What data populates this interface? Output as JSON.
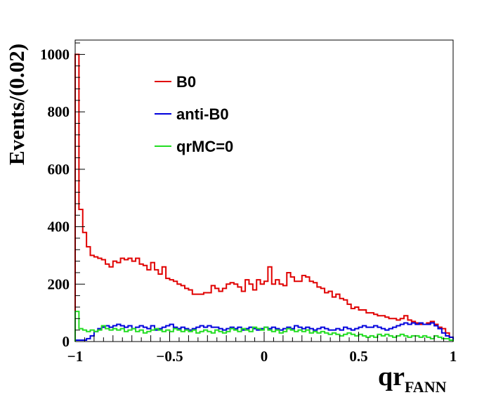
{
  "chart_data": {
    "type": "histogram",
    "ylabel": "Events/(0.02)",
    "xlabel": "qr",
    "xlabel_subscript": "FANN",
    "xlim": [
      -1,
      1
    ],
    "ylim": [
      0,
      1050
    ],
    "bin_width": 0.02,
    "x_ticks": [
      -1,
      -0.5,
      0,
      0.5,
      1
    ],
    "x_tick_labels": [
      "−1",
      "−0.5",
      "0",
      "0.5",
      "1"
    ],
    "y_ticks": [
      0,
      200,
      400,
      600,
      800,
      1000
    ],
    "y_tick_labels": [
      "0",
      "200",
      "400",
      "600",
      "800",
      "1000"
    ],
    "legend_position": "top-left inside",
    "series": [
      {
        "name": "B0",
        "color": "#e00000",
        "values": [
          1000,
          460,
          380,
          330,
          300,
          295,
          290,
          285,
          270,
          260,
          280,
          275,
          290,
          285,
          290,
          280,
          290,
          270,
          265,
          250,
          275,
          250,
          235,
          260,
          220,
          215,
          210,
          200,
          195,
          185,
          180,
          165,
          165,
          165,
          170,
          170,
          195,
          185,
          175,
          185,
          200,
          205,
          200,
          190,
          175,
          215,
          200,
          180,
          215,
          200,
          210,
          260,
          200,
          215,
          200,
          195,
          240,
          225,
          210,
          210,
          230,
          225,
          210,
          205,
          190,
          185,
          170,
          175,
          155,
          165,
          150,
          145,
          130,
          115,
          120,
          110,
          110,
          100,
          100,
          95,
          90,
          90,
          85,
          80,
          80,
          75,
          80,
          90,
          75,
          70,
          65,
          60,
          60,
          65,
          70,
          60,
          50,
          45,
          30,
          15
        ]
      },
      {
        "name": "anti-B0",
        "color": "#0000dd",
        "values": [
          5,
          5,
          5,
          10,
          20,
          35,
          45,
          50,
          55,
          50,
          55,
          60,
          55,
          50,
          55,
          45,
          50,
          55,
          50,
          45,
          55,
          40,
          45,
          50,
          55,
          60,
          50,
          45,
          50,
          45,
          40,
          45,
          50,
          55,
          50,
          55,
          50,
          50,
          45,
          40,
          45,
          50,
          45,
          50,
          40,
          45,
          50,
          45,
          40,
          45,
          50,
          45,
          50,
          45,
          40,
          45,
          50,
          45,
          55,
          50,
          45,
          50,
          45,
          40,
          45,
          50,
          45,
          40,
          40,
          45,
          40,
          50,
          45,
          40,
          45,
          50,
          55,
          50,
          50,
          55,
          50,
          45,
          40,
          45,
          50,
          55,
          60,
          65,
          60,
          65,
          60,
          65,
          60,
          60,
          65,
          55,
          45,
          30,
          20,
          15
        ]
      },
      {
        "name": "qrMC=0",
        "color": "#22dd22",
        "values": [
          105,
          45,
          40,
          35,
          40,
          35,
          40,
          55,
          45,
          40,
          45,
          40,
          45,
          35,
          40,
          45,
          35,
          40,
          30,
          35,
          40,
          45,
          40,
          35,
          40,
          35,
          45,
          40,
          35,
          40,
          35,
          40,
          30,
          35,
          40,
          35,
          30,
          40,
          35,
          30,
          35,
          45,
          40,
          35,
          45,
          40,
          35,
          50,
          45,
          40,
          50,
          40,
          35,
          40,
          30,
          35,
          45,
          40,
          35,
          40,
          35,
          40,
          30,
          35,
          30,
          35,
          30,
          25,
          30,
          25,
          20,
          25,
          30,
          25,
          20,
          25,
          20,
          15,
          20,
          15,
          25,
          20,
          25,
          20,
          15,
          20,
          25,
          20,
          15,
          20,
          20,
          15,
          20,
          15,
          10,
          20,
          15,
          10,
          10,
          5
        ]
      }
    ]
  }
}
